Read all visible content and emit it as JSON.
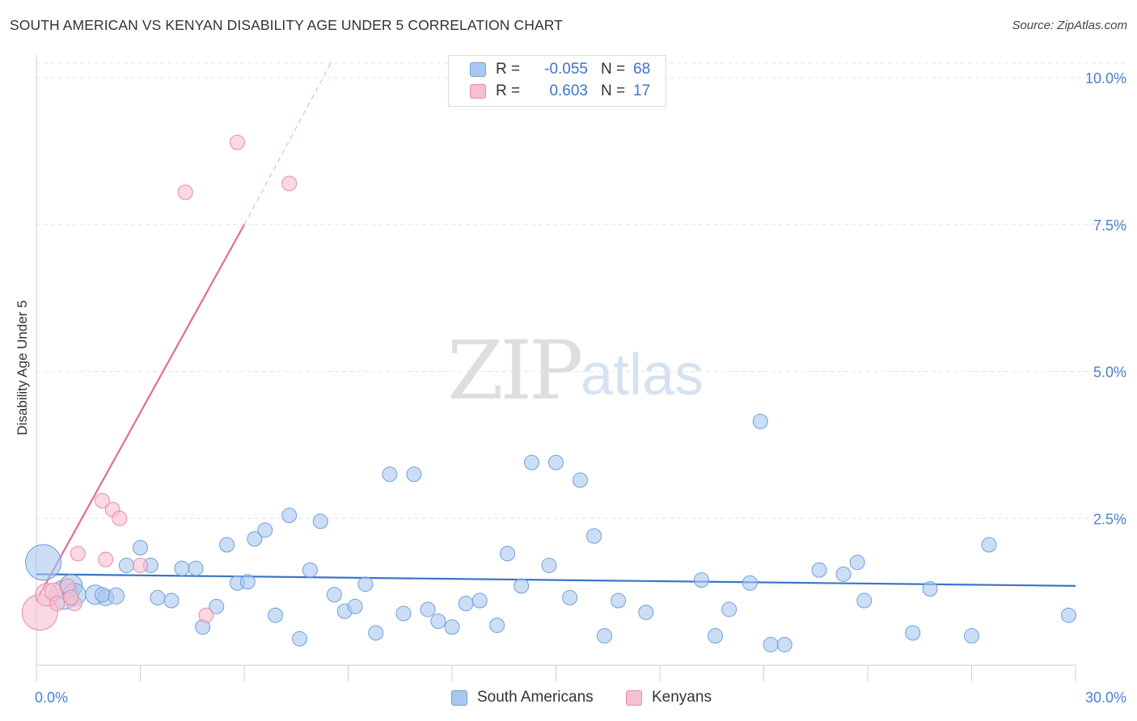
{
  "header": {
    "title": "SOUTH AMERICAN VS KENYAN DISABILITY AGE UNDER 5 CORRELATION CHART",
    "source": "Source: ZipAtlas.com"
  },
  "watermark": {
    "part1": "ZIP",
    "part2": "atlas"
  },
  "legend": {
    "rows": [
      {
        "r_label": "R =",
        "r_value": "-0.055",
        "n_label": "N =",
        "n_value": "68",
        "color": "#a9c8ef",
        "border": "#6f9fdc"
      },
      {
        "r_label": "R =",
        "r_value": "0.603",
        "n_label": "N =",
        "n_value": "17",
        "color": "#f7bfd0",
        "border": "#e98aa8"
      }
    ]
  },
  "bottom_legend": {
    "items": [
      {
        "label": "South Americans",
        "color": "#a9c8ef",
        "border": "#6f9fdc"
      },
      {
        "label": "Kenyans",
        "color": "#f7bfd0",
        "border": "#e98aa8"
      }
    ]
  },
  "chart_data": {
    "type": "scatter",
    "title": "SOUTH AMERICAN VS KENYAN DISABILITY AGE UNDER 5 CORRELATION CHART",
    "xlabel": "",
    "ylabel": "Disability Age Under 5",
    "xlim": [
      0,
      30
    ],
    "ylim": [
      0,
      10.25
    ],
    "x_tick_labels": [
      "0.0%",
      "30.0%"
    ],
    "y_ticks": [
      2.5,
      5.0,
      7.5,
      10.0
    ],
    "y_tick_labels": [
      "2.5%",
      "5.0%",
      "7.5%",
      "10.0%"
    ],
    "grid": true,
    "legend_position": "top-center",
    "series": [
      {
        "name": "South Americans",
        "color": "#a9c8ef",
        "stroke": "#6f9fdc",
        "points": [
          [
            0.2,
            1.75,
            22
          ],
          [
            0.8,
            1.2,
            18
          ],
          [
            1.0,
            1.35,
            14
          ],
          [
            1.1,
            1.2,
            14
          ],
          [
            1.7,
            1.2,
            12
          ],
          [
            2.0,
            1.15,
            10
          ],
          [
            2.3,
            1.18,
            10
          ],
          [
            2.6,
            1.7,
            9
          ],
          [
            3.0,
            2.0,
            9
          ],
          [
            3.3,
            1.7,
            9
          ],
          [
            3.5,
            1.15,
            9
          ],
          [
            3.9,
            1.1,
            9
          ],
          [
            4.2,
            1.65,
            9
          ],
          [
            4.6,
            1.65,
            9
          ],
          [
            4.8,
            0.65,
            9
          ],
          [
            5.2,
            1.0,
            9
          ],
          [
            5.5,
            2.05,
            9
          ],
          [
            5.8,
            1.4,
            9
          ],
          [
            6.1,
            1.42,
            9
          ],
          [
            6.3,
            2.15,
            9
          ],
          [
            6.6,
            2.3,
            9
          ],
          [
            6.9,
            0.85,
            9
          ],
          [
            7.3,
            2.55,
            9
          ],
          [
            7.6,
            0.45,
            9
          ],
          [
            7.9,
            1.62,
            9
          ],
          [
            8.2,
            2.45,
            9
          ],
          [
            8.6,
            1.2,
            9
          ],
          [
            8.9,
            0.92,
            9
          ],
          [
            9.2,
            1.0,
            9
          ],
          [
            9.5,
            1.38,
            9
          ],
          [
            9.8,
            0.55,
            9
          ],
          [
            10.2,
            3.25,
            9
          ],
          [
            10.6,
            0.88,
            9
          ],
          [
            10.9,
            3.25,
            9
          ],
          [
            11.3,
            0.95,
            9
          ],
          [
            11.6,
            0.75,
            9
          ],
          [
            12.0,
            0.65,
            9
          ],
          [
            12.4,
            1.05,
            9
          ],
          [
            12.8,
            1.1,
            9
          ],
          [
            13.3,
            0.68,
            9
          ],
          [
            13.6,
            1.9,
            9
          ],
          [
            14.0,
            1.35,
            9
          ],
          [
            14.3,
            3.45,
            9
          ],
          [
            14.8,
            1.7,
            9
          ],
          [
            15.0,
            3.45,
            9
          ],
          [
            15.4,
            1.15,
            9
          ],
          [
            15.7,
            3.15,
            9
          ],
          [
            16.1,
            2.2,
            9
          ],
          [
            16.4,
            0.5,
            9
          ],
          [
            16.8,
            1.1,
            9
          ],
          [
            17.6,
            0.9,
            9
          ],
          [
            19.2,
            1.45,
            9
          ],
          [
            19.6,
            0.5,
            9
          ],
          [
            20.0,
            0.95,
            9
          ],
          [
            20.6,
            1.4,
            9
          ],
          [
            20.9,
            4.15,
            9
          ],
          [
            21.2,
            0.35,
            9
          ],
          [
            21.6,
            0.35,
            9
          ],
          [
            22.6,
            1.62,
            9
          ],
          [
            23.3,
            1.55,
            9
          ],
          [
            23.7,
            1.75,
            9
          ],
          [
            23.9,
            1.1,
            9
          ],
          [
            25.3,
            0.55,
            9
          ],
          [
            25.8,
            1.3,
            9
          ],
          [
            27.0,
            0.5,
            9
          ],
          [
            27.5,
            2.05,
            9
          ],
          [
            29.8,
            0.85,
            9
          ],
          [
            1.9,
            1.2,
            9
          ]
        ]
      },
      {
        "name": "Kenyans",
        "color": "#f7bfd0",
        "stroke": "#e98aa8",
        "points": [
          [
            0.1,
            0.9,
            22
          ],
          [
            0.3,
            1.2,
            14
          ],
          [
            0.5,
            1.25,
            11
          ],
          [
            0.6,
            1.05,
            9
          ],
          [
            0.9,
            1.35,
            9
          ],
          [
            1.1,
            1.05,
            9
          ],
          [
            1.2,
            1.9,
            9
          ],
          [
            1.9,
            2.8,
            9
          ],
          [
            2.0,
            1.8,
            9
          ],
          [
            2.2,
            2.65,
            9
          ],
          [
            2.4,
            2.5,
            9
          ],
          [
            3.0,
            1.7,
            9
          ],
          [
            4.3,
            8.05,
            9
          ],
          [
            4.9,
            0.85,
            9
          ],
          [
            5.8,
            8.9,
            9
          ],
          [
            7.3,
            8.2,
            9
          ],
          [
            1.0,
            1.15,
            9
          ]
        ]
      }
    ],
    "trend_lines": [
      {
        "series": "South Americans",
        "x": [
          0.0,
          30.0
        ],
        "y": [
          1.55,
          1.35
        ],
        "style": "solid",
        "color": "#3a75c9"
      },
      {
        "series": "Kenyans",
        "x": [
          0.0,
          6.0
        ],
        "y": [
          1.1,
          7.5
        ],
        "style": "solid",
        "color": "#e26b97"
      },
      {
        "series": "Kenyans",
        "x": [
          6.0,
          8.5
        ],
        "y": [
          7.5,
          10.25
        ],
        "style": "dashed",
        "color": "#e26b97"
      }
    ]
  }
}
